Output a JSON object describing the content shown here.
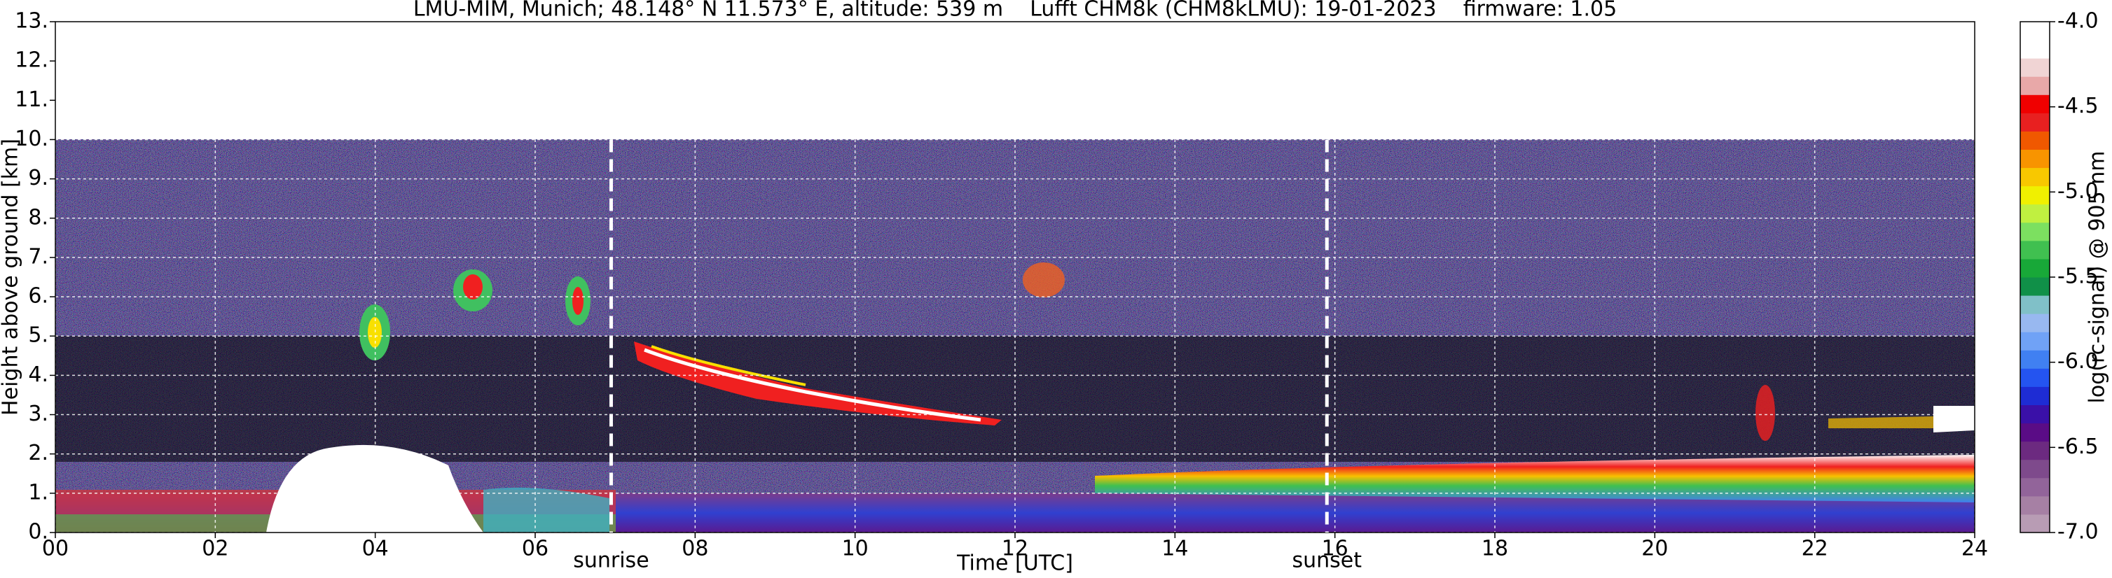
{
  "chart_data": {
    "type": "heatmap",
    "title": "LMU-MIM, Munich; 48.148° N 11.573° E, altitude: 539 m    Lufft CHM8k (CHM8kLMU): 19-01-2023    firmware: 1.05",
    "xlabel": "Time [UTC]",
    "ylabel": "Height above ground [km]",
    "xlim": [
      0,
      24
    ],
    "xticks": [
      {
        "value": 0,
        "label": "00"
      },
      {
        "value": 2,
        "label": "02"
      },
      {
        "value": 4,
        "label": "04"
      },
      {
        "value": 6,
        "label": "06"
      },
      {
        "value": 8,
        "label": "08"
      },
      10,
      12,
      14,
      16,
      18,
      20,
      22,
      24
    ],
    "ylim": [
      0,
      13
    ],
    "yticks": [
      {
        "value": 0,
        "label": "0."
      },
      {
        "value": 1,
        "label": "1."
      },
      {
        "value": 2,
        "label": "2."
      },
      {
        "value": 3,
        "label": "3."
      },
      {
        "value": 4,
        "label": "4."
      },
      {
        "value": 5,
        "label": "5."
      },
      {
        "value": 6,
        "label": "6."
      },
      {
        "value": 7,
        "label": "7."
      },
      {
        "value": 8,
        "label": "8."
      },
      {
        "value": 9,
        "label": "9."
      },
      {
        "value": 10,
        "label": "10."
      },
      {
        "value": 11,
        "label": "11."
      },
      {
        "value": 12,
        "label": "12."
      },
      {
        "value": 13,
        "label": "13."
      }
    ],
    "grid": true,
    "annotations": [
      {
        "x": 6.95,
        "label": "sunrise"
      },
      {
        "x": 15.9,
        "label": "sunset"
      }
    ],
    "colorbar": {
      "label": "log(rc-signal) @ 905 nm",
      "lim": [
        -7,
        -4
      ],
      "ticks": [
        {
          "value": -7,
          "label": "-7.0"
        },
        {
          "value": -6.5,
          "label": "-6.5"
        },
        {
          "value": -6,
          "label": "-6.0"
        },
        {
          "value": -5.5,
          "label": "-5.5"
        },
        {
          "value": -5,
          "label": "-5.0"
        },
        {
          "value": -4.5,
          "label": "-4.5"
        },
        {
          "value": -4,
          "label": "-4.0"
        }
      ],
      "colors": [
        "#b89cb4",
        "#a680a4",
        "#92649a",
        "#7e4a8c",
        "#6c2a80",
        "#5a0c86",
        "#3a10a8",
        "#1e2cd4",
        "#2454f0",
        "#4080f2",
        "#70a2f6",
        "#98b8f0",
        "#80c0c8",
        "#109048",
        "#18a838",
        "#40c050",
        "#7ce060",
        "#c0f040",
        "#f0f000",
        "#f8c800",
        "#f89400",
        "#f05800",
        "#e82020",
        "#f00000",
        "#e8a8a8",
        "#f0d4d4",
        "#ffffff",
        "#ffffff"
      ]
    }
  }
}
